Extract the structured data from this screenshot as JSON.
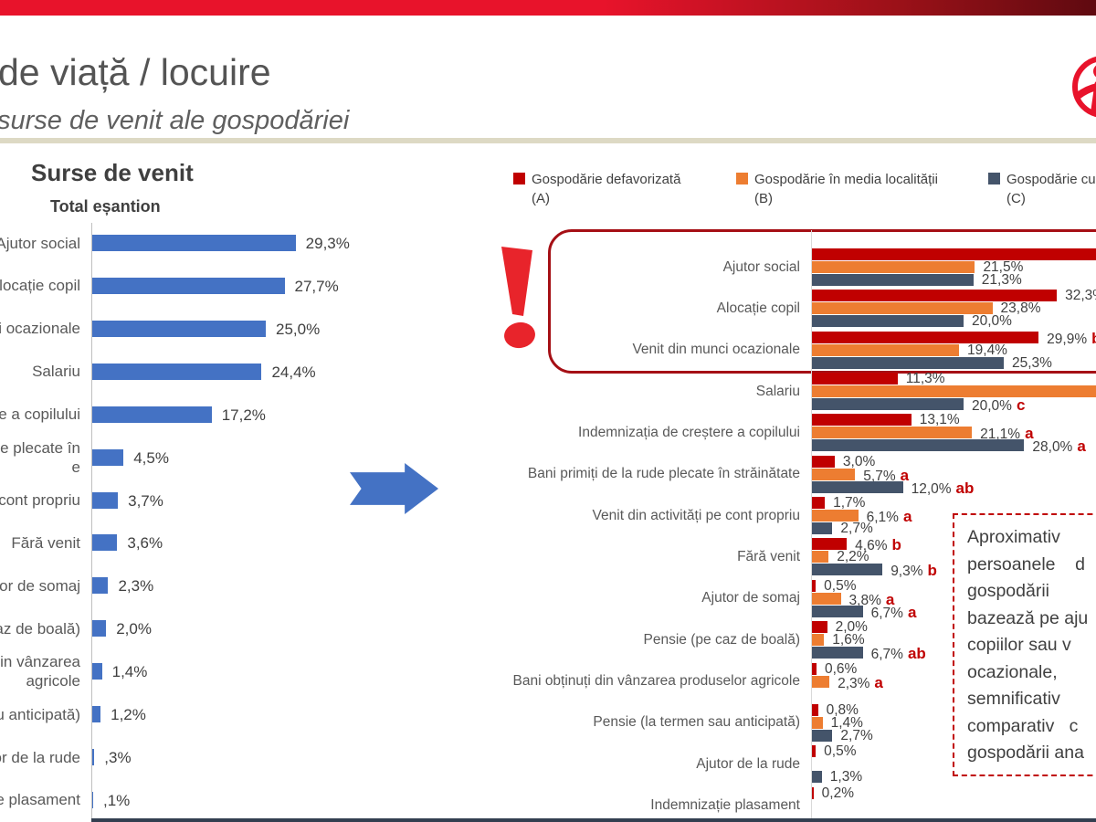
{
  "header": {
    "title": "de viață / locuire",
    "subtitle": "surse de venit ale gospodăriei"
  },
  "callout": {
    "lines": [
      "Aproximativ",
      "persoanele    d",
      "gospodării",
      "bazează pe aju",
      "copiilor sau v",
      "ocazionale,",
      "semnificativ",
      "comparativ   c",
      "gospodării ana"
    ]
  },
  "chart_data": [
    {
      "type": "bar",
      "orientation": "horizontal",
      "title": "Surse de venit",
      "subtitle": "Total eșantion",
      "bar_color": "#4472C4",
      "xlim": [
        0,
        32
      ],
      "grid": false,
      "categories": [
        [
          "Ajutor social"
        ],
        [
          "locație copil"
        ],
        [
          "i ocazionale"
        ],
        [
          "Salariu"
        ],
        [
          "e a copilului"
        ],
        [
          "le plecate în",
          "e"
        ],
        [
          "cont propriu"
        ],
        [
          "Fără venit"
        ],
        [
          "tor de somaj"
        ],
        [
          "az de boală)"
        ],
        [
          "din vânzarea",
          "agricole"
        ],
        [
          "u anticipată)"
        ],
        [
          "or de la rude"
        ],
        [
          "e plasament"
        ]
      ],
      "values": [
        29.3,
        27.7,
        25.0,
        24.4,
        17.2,
        4.5,
        3.7,
        3.6,
        2.3,
        2.0,
        1.4,
        1.2,
        0.3,
        0.1
      ],
      "value_labels": [
        "29,3%",
        "27,7%",
        "25,0%",
        "24,4%",
        "17,2%",
        "4,5%",
        "3,7%",
        "3,6%",
        "2,3%",
        "2,0%",
        "1,4%",
        "1,2%",
        ",3%",
        ",1%"
      ]
    },
    {
      "type": "bar",
      "orientation": "horizontal",
      "grouped": true,
      "legend_position": "top",
      "xlim": [
        0,
        38
      ],
      "series": [
        {
          "name": "Gospodărie defavorizată",
          "letter": "(A)",
          "color": "#C00000"
        },
        {
          "name": "Gospodărie în media localității",
          "letter": "(B)",
          "color": "#ED7D31"
        },
        {
          "name": "Gospodărie cu m",
          "letter": "(C)",
          "color": "#44546A"
        }
      ],
      "groups": [
        {
          "category": "Ajutor social",
          "bars": [
            {
              "cut": true
            },
            {
              "value": 21.5,
              "label": "21,5%"
            },
            {
              "value": 21.3,
              "label": "21,3%"
            }
          ]
        },
        {
          "category": "Alocație copil",
          "bars": [
            {
              "value": 32.3,
              "label": "32,3%"
            },
            {
              "value": 23.8,
              "label": "23,8%"
            },
            {
              "value": 20.0,
              "label": "20,0%"
            }
          ]
        },
        {
          "category": "Venit din munci ocazionale",
          "bars": [
            {
              "value": 29.9,
              "label": "29,9%",
              "sig": "b"
            },
            {
              "value": 19.4,
              "label": "19,4%"
            },
            {
              "value": 25.3,
              "label": "25,3%"
            }
          ]
        },
        {
          "category": "Salariu",
          "bars": [
            {
              "value": 11.3,
              "label": "11,3%"
            },
            {
              "cut": true
            },
            {
              "value": 20.0,
              "label": "20,0%",
              "sig": "c"
            }
          ]
        },
        {
          "category": "Indemnizația de creștere a copilului",
          "bars": [
            {
              "value": 13.1,
              "label": "13,1%"
            },
            {
              "value": 21.1,
              "label": "21,1%",
              "sig": "a"
            },
            {
              "value": 28.0,
              "label": "28,0%",
              "sig": "a"
            }
          ]
        },
        {
          "category": "Bani primiți de la rude plecate în străinătate",
          "bars": [
            {
              "value": 3.0,
              "label": "3,0%"
            },
            {
              "value": 5.7,
              "label": "5,7%",
              "sig": "a"
            },
            {
              "value": 12.0,
              "label": "12,0%",
              "sig": "ab"
            }
          ]
        },
        {
          "category": "Venit din activități pe cont propriu",
          "bars": [
            {
              "value": 1.7,
              "label": "1,7%"
            },
            {
              "value": 6.1,
              "label": "6,1%",
              "sig": "a"
            },
            {
              "value": 2.7,
              "label": "2,7%"
            }
          ]
        },
        {
          "category": "Fără venit",
          "bars": [
            {
              "value": 4.6,
              "label": "4,6%",
              "sig": "b"
            },
            {
              "value": 2.2,
              "label": "2,2%"
            },
            {
              "value": 9.3,
              "label": "9,3%",
              "sig": "b"
            }
          ]
        },
        {
          "category": "Ajutor de somaj",
          "bars": [
            {
              "value": 0.5,
              "label": "0,5%"
            },
            {
              "value": 3.8,
              "label": "3,8%",
              "sig": "a"
            },
            {
              "value": 6.7,
              "label": "6,7%",
              "sig": "a"
            }
          ]
        },
        {
          "category": "Pensie (pe caz de boală)",
          "bars": [
            {
              "value": 2.0,
              "label": "2,0%"
            },
            {
              "value": 1.6,
              "label": "1,6%"
            },
            {
              "value": 6.7,
              "label": "6,7%",
              "sig": "ab"
            }
          ]
        },
        {
          "category": "Bani obținuți din vânzarea produselor agricole",
          "bars": [
            {
              "value": 0.6,
              "label": "0,6%"
            },
            {
              "value": 2.3,
              "label": "2,3%",
              "sig": "a"
            },
            null
          ]
        },
        {
          "category": "Pensie (la termen sau anticipată)",
          "bars": [
            {
              "value": 0.8,
              "label": "0,8%"
            },
            {
              "value": 1.4,
              "label": "1,4%"
            },
            {
              "value": 2.7,
              "label": "2,7%"
            }
          ]
        },
        {
          "category": "Ajutor de la rude",
          "bars": [
            {
              "value": 0.5,
              "label": "0,5%"
            },
            null,
            {
              "value": 1.3,
              "label": "1,3%"
            }
          ]
        },
        {
          "category": "Indemnizație plasament",
          "bars": [
            {
              "value": 0.2,
              "label": "0,2%"
            },
            null,
            null
          ]
        }
      ]
    }
  ]
}
